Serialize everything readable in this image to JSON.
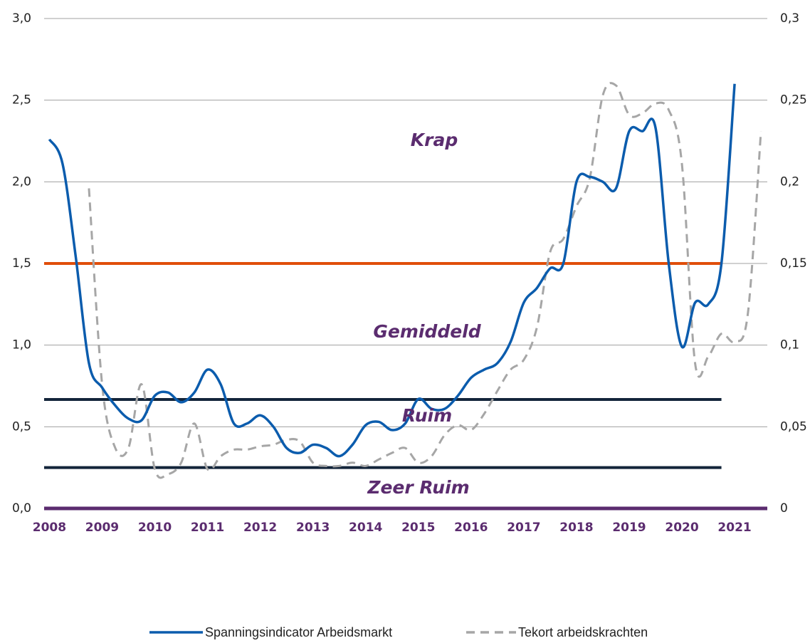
{
  "chart_data": {
    "type": "line",
    "xlim": [
      2007.9,
      2021.62
    ],
    "xticks": [
      2008,
      2009,
      2010,
      2011,
      2012,
      2013,
      2014,
      2015,
      2016,
      2017,
      2018,
      2019,
      2020,
      2021
    ],
    "ylim": [
      0,
      3
    ],
    "yticks": [
      {
        "value": 0,
        "label": "0,0"
      },
      {
        "value": 0.5,
        "label": "0,5"
      },
      {
        "value": 1,
        "label": "1,0"
      },
      {
        "value": 1.5,
        "label": "1,5"
      },
      {
        "value": 2,
        "label": "2,0"
      },
      {
        "value": 2.5,
        "label": "2,5"
      },
      {
        "value": 3,
        "label": "3,0"
      }
    ],
    "y2lim": [
      0,
      0.3
    ],
    "y2ticks": [
      0,
      {
        "value": 0.05,
        "label": "0,05"
      },
      {
        "value": 0.1,
        "label": "0,1"
      },
      {
        "value": 0.15,
        "label": "0,15"
      },
      {
        "value": 0.2,
        "label": "0,2"
      },
      {
        "value": 0.25,
        "label": "0,25"
      },
      {
        "value": 0.3,
        "label": "0,3"
      }
    ],
    "grid": true,
    "legend": "bottom",
    "series": [
      {
        "name": "Spanningsindicator Arbeidsmarkt",
        "color": "#0b5cad",
        "axis": "y",
        "x": [
          2008,
          2008.25,
          2008.5,
          2008.75,
          2009,
          2009.25,
          2009.5,
          2009.75,
          2010,
          2010.25,
          2010.5,
          2010.75,
          2011,
          2011.25,
          2011.5,
          2011.75,
          2012,
          2012.25,
          2012.5,
          2012.75,
          2013,
          2013.25,
          2013.5,
          2013.75,
          2014,
          2014.25,
          2014.5,
          2014.75,
          2015,
          2015.25,
          2015.5,
          2015.75,
          2016,
          2016.25,
          2016.5,
          2016.75,
          2017,
          2017.25,
          2017.5,
          2017.75,
          2018,
          2018.25,
          2018.5,
          2018.75,
          2019,
          2019.25,
          2019.5,
          2019.75,
          2020,
          2020.25,
          2020.5,
          2020.75,
          2021
        ],
        "values": [
          2.26,
          2.11,
          1.54,
          0.89,
          0.74,
          0.63,
          0.55,
          0.54,
          0.69,
          0.71,
          0.65,
          0.71,
          0.85,
          0.76,
          0.52,
          0.52,
          0.57,
          0.5,
          0.37,
          0.34,
          0.39,
          0.37,
          0.32,
          0.39,
          0.51,
          0.53,
          0.48,
          0.52,
          0.67,
          0.61,
          0.61,
          0.69,
          0.8,
          0.85,
          0.89,
          1.02,
          1.26,
          1.35,
          1.47,
          1.5,
          2.0,
          2.03,
          2.0,
          1.96,
          2.31,
          2.31,
          2.33,
          1.5,
          0.99,
          1.26,
          1.25,
          1.5,
          2.6
        ]
      },
      {
        "name": "Tekort arbeidskrachten",
        "color": "#a6a6a6",
        "axis": "y2",
        "x": [
          2008.75,
          2009,
          2009.25,
          2009.5,
          2009.75,
          2010,
          2010.25,
          2010.5,
          2010.75,
          2011,
          2011.25,
          2011.5,
          2011.75,
          2012,
          2012.25,
          2012.5,
          2012.75,
          2013,
          2013.25,
          2013.5,
          2013.75,
          2014,
          2014.25,
          2014.5,
          2014.75,
          2015,
          2015.25,
          2015.5,
          2015.75,
          2016,
          2016.25,
          2016.5,
          2016.75,
          2017,
          2017.25,
          2017.5,
          2017.75,
          2018,
          2018.25,
          2018.5,
          2018.75,
          2019,
          2019.25,
          2019.5,
          2019.75,
          2020,
          2020.25,
          2020.5,
          2020.75,
          2021,
          2021.25,
          2021.5
        ],
        "values": [
          0.196,
          0.076,
          0.037,
          0.037,
          0.076,
          0.024,
          0.021,
          0.028,
          0.052,
          0.024,
          0.032,
          0.036,
          0.036,
          0.038,
          0.039,
          0.042,
          0.041,
          0.028,
          0.026,
          0.026,
          0.028,
          0.026,
          0.03,
          0.034,
          0.037,
          0.028,
          0.032,
          0.045,
          0.051,
          0.048,
          0.058,
          0.072,
          0.085,
          0.091,
          0.111,
          0.157,
          0.165,
          0.185,
          0.202,
          0.253,
          0.259,
          0.241,
          0.242,
          0.248,
          0.244,
          0.211,
          0.089,
          0.093,
          0.107,
          0.102,
          0.119,
          0.231
        ]
      }
    ],
    "reference_lines": [
      {
        "value": 1.5,
        "color": "#e04e0b",
        "xrange": [
          2007.9,
          2020.75
        ]
      },
      {
        "value": 0.667,
        "color": "#13253a",
        "xrange": [
          2007.9,
          2020.75
        ]
      },
      {
        "value": 0.25,
        "color": "#13253a",
        "xrange": [
          2007.9,
          2020.75
        ]
      }
    ],
    "annotations": [
      "Krap",
      "Gemiddeld",
      "Ruim",
      "Zeer Ruim"
    ]
  }
}
